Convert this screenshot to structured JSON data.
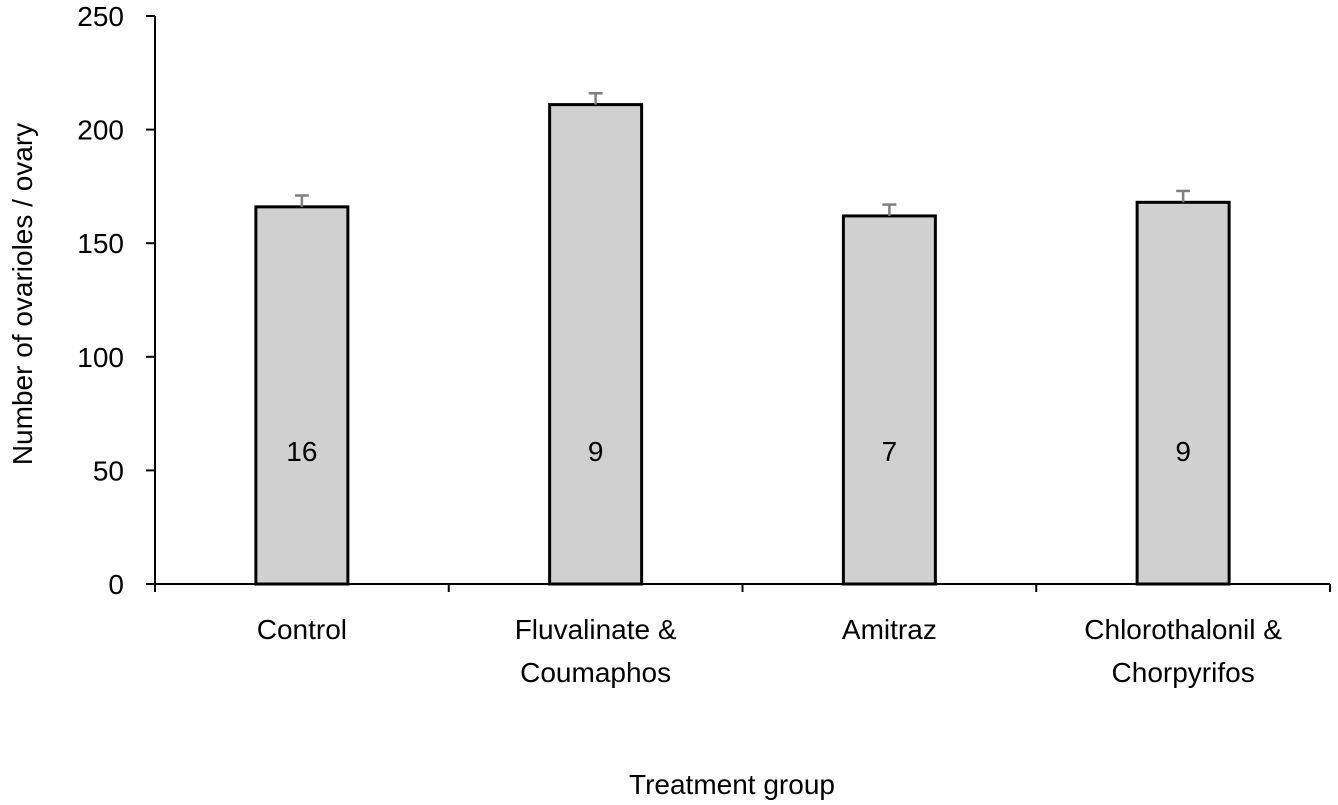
{
  "chart_data": {
    "type": "bar",
    "title": "",
    "xlabel": "Treatment group",
    "ylabel": "Number of ovarioles / ovary",
    "ylim": [
      0,
      250
    ],
    "yticks": [
      0,
      50,
      100,
      150,
      200,
      250
    ],
    "grid": false,
    "categories": [
      [
        "Control"
      ],
      [
        "Fluvalinate &",
        "Coumaphos"
      ],
      [
        "Amitraz"
      ],
      [
        "Chlorothalonil &",
        "Chorpyrifos"
      ]
    ],
    "values": [
      166,
      211,
      162,
      168
    ],
    "error": [
      5,
      5,
      5,
      5
    ],
    "bar_labels": [
      "16",
      "9",
      "7",
      "9"
    ],
    "colors": {
      "bar_fill": "#d0d0d0",
      "bar_stroke": "#000000",
      "error_bar": "#808080",
      "axis": "#000000"
    }
  }
}
